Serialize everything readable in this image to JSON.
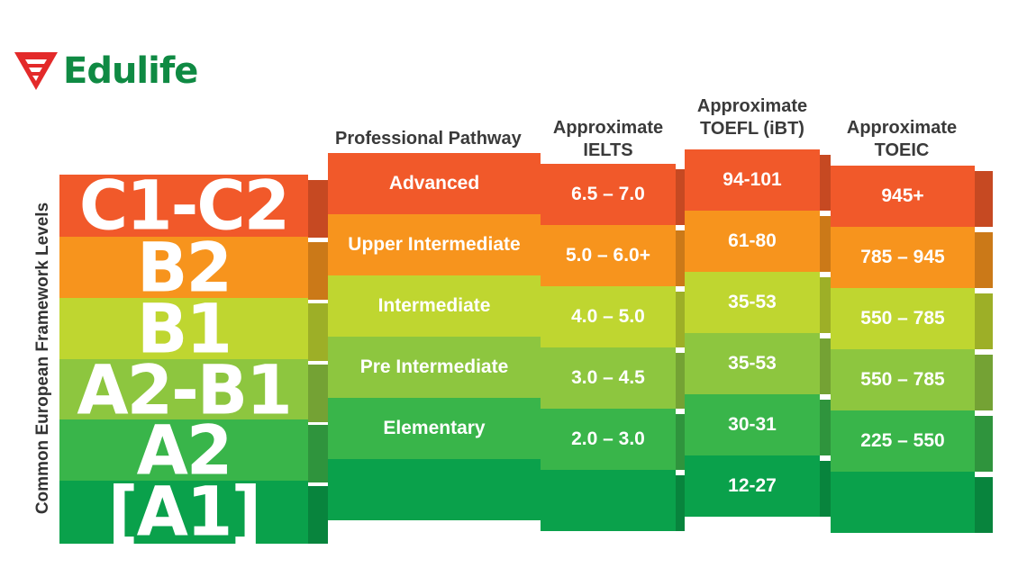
{
  "brand": {
    "name": "Edulife",
    "colors": {
      "red": "#e32a2a",
      "green": "#0f8a43"
    }
  },
  "side_label": "Common European Framework Levels",
  "headers": {
    "pathway": "Professional Pathway",
    "ielts": [
      "Approximate",
      "IELTS"
    ],
    "toefl": [
      "Approximate",
      "TOEFL (iBT)"
    ],
    "toeic": [
      "Approximate",
      "TOEIC"
    ]
  },
  "band_colors": [
    "#f1592a",
    "#f7941d",
    "#bfd630",
    "#8dc63f",
    "#39b54a",
    "#0aa14b"
  ],
  "levels": [
    {
      "cefr": "C1-C2",
      "pathway": "Advanced",
      "ielts": "6.5 – 7.0",
      "toefl": "94-101",
      "toeic": "945+"
    },
    {
      "cefr": "B2",
      "pathway": "Upper Intermediate",
      "ielts": "5.0 – 6.0+",
      "toefl": "61-80",
      "toeic": "785 – 945"
    },
    {
      "cefr": "B1",
      "pathway": "Intermediate",
      "ielts": "4.0 – 5.0",
      "toefl": "35-53",
      "toeic": "550 – 785"
    },
    {
      "cefr": "A2-B1",
      "pathway": "Pre Intermediate",
      "ielts": "3.0 – 4.5",
      "toefl": "35-53",
      "toeic": "550 – 785"
    },
    {
      "cefr": "A2",
      "pathway": "Elementary",
      "ielts": "2.0 – 3.0",
      "toefl": "30-31",
      "toeic": "225 – 550"
    },
    {
      "cefr": "[A1]",
      "pathway": "",
      "ielts": "",
      "toefl": "12-27",
      "toeic": ""
    }
  ]
}
